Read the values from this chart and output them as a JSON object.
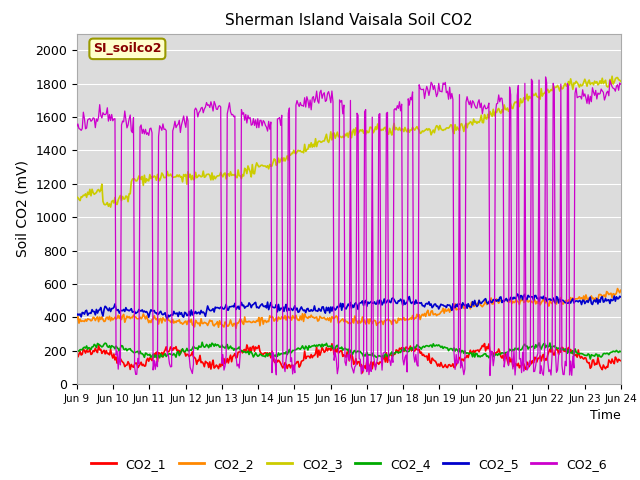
{
  "title": "Sherman Island Vaisala Soil CO2",
  "ylabel": "Soil CO2 (mV)",
  "xlabel": "Time",
  "legend_label": "SI_soilco2",
  "ylim": [
    0,
    2100
  ],
  "yticks": [
    0,
    200,
    400,
    600,
    800,
    1000,
    1200,
    1400,
    1600,
    1800,
    2000
  ],
  "bg_color": "#dcdcdc",
  "series_colors": {
    "CO2_1": "#ff0000",
    "CO2_2": "#ff8800",
    "CO2_3": "#cccc00",
    "CO2_4": "#00aa00",
    "CO2_5": "#0000cc",
    "CO2_6": "#cc00cc"
  },
  "n_points": 500,
  "x_start": 9,
  "x_end": 24,
  "xtick_positions": [
    9,
    10,
    11,
    12,
    13,
    14,
    15,
    16,
    17,
    18,
    19,
    20,
    21,
    22,
    23,
    24
  ],
  "xtick_labels": [
    "Jun 9",
    "Jun 10",
    "Jun 11",
    "Jun 12",
    "Jun 13",
    "Jun 14",
    "Jun 15",
    "Jun 16",
    "Jun 17",
    "Jun 18",
    "Jun 19",
    "Jun 20",
    "Jun 21",
    "Jun 22",
    "Jun 23",
    "Jun 24"
  ]
}
